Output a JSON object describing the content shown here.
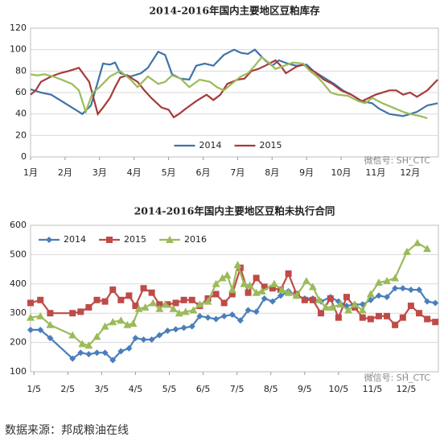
{
  "chart_data": [
    {
      "type": "line",
      "title": "2014-2016年国内主要地区豆粕库存",
      "xlim": [
        1,
        12.82
      ],
      "ylim": [
        0,
        120
      ],
      "xticks": [
        {
          "value": 1,
          "label": "1月"
        },
        {
          "value": 2,
          "label": "2月"
        },
        {
          "value": 3,
          "label": "3月"
        },
        {
          "value": 4,
          "label": "4月"
        },
        {
          "value": 5,
          "label": "5月"
        },
        {
          "value": 6,
          "label": "6月"
        },
        {
          "value": 7,
          "label": "7月"
        },
        {
          "value": 8,
          "label": "8月"
        },
        {
          "value": 9,
          "label": "9月"
        },
        {
          "value": 10,
          "label": "10月"
        },
        {
          "value": 11,
          "label": "11月"
        },
        {
          "value": 12,
          "label": "12月"
        }
      ],
      "yticks": [
        0,
        20,
        40,
        60,
        80,
        100,
        120
      ],
      "grid": true,
      "legend": "bottom",
      "annotations": [
        "微信号: SH_CTC"
      ],
      "series": [
        {
          "name": "2014",
          "color": "#3f73a8",
          "x": [
            1,
            1.3,
            1.6,
            2.0,
            2.3,
            2.5,
            2.75,
            2.95,
            3.1,
            3.3,
            3.45,
            3.6,
            3.9,
            4.2,
            4.4,
            4.7,
            4.9,
            5.1,
            5.35,
            5.6,
            5.8,
            6.05,
            6.3,
            6.6,
            6.9,
            7.1,
            7.3,
            7.5,
            7.8,
            8.0,
            8.2,
            8.45,
            8.7,
            9.0,
            9.2,
            9.4,
            9.6,
            9.8,
            10.05,
            10.3,
            10.6,
            10.9,
            11.1,
            11.4,
            11.8,
            12.0,
            12.2,
            12.5,
            12.8
          ],
          "values": [
            63,
            60,
            58,
            50,
            44,
            40,
            48,
            70,
            87,
            86,
            88,
            78,
            75,
            78,
            83,
            98,
            95,
            77,
            73,
            72,
            85,
            87,
            85,
            95,
            100,
            97,
            96,
            100,
            90,
            85,
            90,
            87,
            85,
            86,
            80,
            76,
            72,
            68,
            62,
            58,
            52,
            50,
            45,
            40,
            38,
            40,
            42,
            48,
            50
          ]
        },
        {
          "name": "2015",
          "color": "#a83a3a",
          "x": [
            1,
            1.15,
            1.3,
            1.6,
            1.85,
            2.1,
            2.4,
            2.7,
            2.95,
            3.1,
            3.3,
            3.45,
            3.6,
            3.8,
            4.1,
            4.3,
            4.5,
            4.8,
            5.0,
            5.15,
            5.3,
            5.5,
            5.8,
            6.1,
            6.3,
            6.5,
            6.7,
            7.0,
            7.2,
            7.4,
            7.6,
            7.8,
            8.1,
            8.25,
            8.4,
            8.7,
            8.9,
            9.2,
            9.5,
            9.75,
            10.0,
            10.3,
            10.6,
            10.8,
            11.0,
            11.4,
            11.6,
            11.8,
            12.0,
            12.2,
            12.5,
            12.8
          ],
          "values": [
            58,
            62,
            70,
            75,
            78,
            80,
            83,
            70,
            40,
            46,
            55,
            65,
            74,
            76,
            70,
            62,
            55,
            46,
            44,
            37,
            40,
            45,
            52,
            58,
            53,
            58,
            68,
            72,
            73,
            80,
            82,
            85,
            90,
            85,
            78,
            84,
            86,
            80,
            72,
            68,
            62,
            58,
            52,
            55,
            58,
            62,
            62,
            58,
            60,
            56,
            62,
            72
          ]
        },
        {
          "color": "#9bbb59",
          "x": [
            1,
            1.2,
            1.4,
            1.65,
            1.9,
            2.2,
            2.4,
            2.6,
            2.8,
            3.0,
            3.3,
            3.6,
            3.9,
            4.1,
            4.25,
            4.4,
            4.7,
            4.9,
            5.1,
            5.35,
            5.6,
            5.9,
            6.2,
            6.4,
            6.6,
            6.9,
            7.1,
            7.3,
            7.5,
            7.7,
            7.9,
            8.1,
            8.35,
            8.6,
            8.9,
            9.1,
            9.3,
            9.5,
            9.7,
            9.9,
            10.2,
            10.5,
            10.7,
            10.9,
            11.2,
            11.5,
            11.8,
            12.0,
            12.3,
            12.5
          ],
          "values": [
            77,
            76,
            77,
            75,
            72,
            68,
            62,
            42,
            60,
            65,
            75,
            80,
            72,
            65,
            70,
            75,
            68,
            70,
            76,
            73,
            65,
            72,
            70,
            65,
            62,
            70,
            75,
            78,
            85,
            93,
            88,
            82,
            85,
            88,
            87,
            80,
            75,
            68,
            60,
            58,
            57,
            52,
            50,
            55,
            50,
            46,
            42,
            40,
            38,
            36
          ]
        }
      ]
    },
    {
      "type": "line",
      "title": "2014-2016年国内主要地区豆粕未执行合同",
      "xlim": [
        0.9,
        12.95
      ],
      "ylim": [
        100,
        600
      ],
      "xticks": [
        {
          "value": 1,
          "label": "1/5"
        },
        {
          "value": 2,
          "label": "2/5"
        },
        {
          "value": 3,
          "label": "3/5"
        },
        {
          "value": 4,
          "label": "4/5"
        },
        {
          "value": 5,
          "label": "5/5"
        },
        {
          "value": 6,
          "label": "6/5"
        },
        {
          "value": 7,
          "label": "7/5"
        },
        {
          "value": 8,
          "label": "8/5"
        },
        {
          "value": 9,
          "label": "9/5"
        },
        {
          "value": 10,
          "label": "10/5"
        },
        {
          "value": 11,
          "label": "11/5"
        },
        {
          "value": 12,
          "label": "12/5"
        }
      ],
      "yticks": [
        100,
        200,
        300,
        400,
        500,
        600
      ],
      "grid": true,
      "legend": "top-left",
      "annotations": [
        "微信号: SH_CTC"
      ],
      "series": [
        {
          "name": "2014",
          "color": "#4a7ebb",
          "marker": "diamond",
          "x": [
            0.9,
            1.19,
            1.48,
            2.14,
            2.38,
            2.62,
            2.86,
            3.1,
            3.33,
            3.57,
            3.81,
            4.0,
            4.24,
            4.48,
            4.71,
            4.95,
            5.19,
            5.43,
            5.67,
            5.9,
            6.14,
            6.38,
            6.62,
            6.86,
            7.1,
            7.33,
            7.57,
            7.81,
            8.05,
            8.29,
            8.52,
            8.76,
            9.0,
            9.24,
            9.48,
            9.76,
            10.0,
            10.24,
            10.48,
            10.71,
            10.95,
            11.19,
            11.43,
            11.67,
            11.9,
            12.14,
            12.38,
            12.62,
            12.86
          ],
          "values": [
            243,
            243,
            215,
            145,
            165,
            160,
            165,
            165,
            140,
            170,
            180,
            215,
            210,
            210,
            225,
            240,
            245,
            250,
            255,
            290,
            285,
            280,
            290,
            295,
            275,
            310,
            305,
            350,
            340,
            360,
            375,
            360,
            350,
            350,
            340,
            355,
            340,
            325,
            330,
            330,
            345,
            360,
            355,
            385,
            385,
            380,
            380,
            340,
            335
          ]
        },
        {
          "name": "2015",
          "color": "#be4b48",
          "marker": "square",
          "x": [
            0.9,
            1.19,
            1.48,
            2.14,
            2.38,
            2.62,
            2.86,
            3.1,
            3.33,
            3.57,
            3.81,
            4.0,
            4.24,
            4.48,
            4.71,
            4.95,
            5.19,
            5.43,
            5.67,
            5.9,
            6.14,
            6.38,
            6.62,
            6.86,
            7.1,
            7.33,
            7.57,
            7.81,
            8.05,
            8.29,
            8.52,
            8.76,
            9.0,
            9.24,
            9.48,
            9.76,
            10.0,
            10.24,
            10.48,
            10.71,
            10.95,
            11.19,
            11.43,
            11.67,
            11.9,
            12.14,
            12.38,
            12.62,
            12.86
          ],
          "values": [
            335,
            345,
            300,
            300,
            305,
            320,
            345,
            340,
            380,
            345,
            360,
            325,
            385,
            370,
            330,
            330,
            335,
            345,
            345,
            325,
            350,
            365,
            335,
            365,
            455,
            370,
            420,
            390,
            385,
            380,
            435,
            365,
            345,
            345,
            300,
            350,
            285,
            355,
            320,
            285,
            280,
            290,
            290,
            260,
            285,
            325,
            300,
            280,
            270
          ]
        },
        {
          "name": "2016",
          "color": "#9bbb59",
          "marker": "triangle",
          "x": [
            0.9,
            1.19,
            1.48,
            2.14,
            2.43,
            2.62,
            2.86,
            3.1,
            3.33,
            3.57,
            3.76,
            3.93,
            4.1,
            4.29,
            4.52,
            4.71,
            4.88,
            5.12,
            5.29,
            5.48,
            5.71,
            5.9,
            6.14,
            6.38,
            6.57,
            6.71,
            6.86,
            7.02,
            7.21,
            7.38,
            7.57,
            7.74,
            8.1,
            8.33,
            8.52,
            8.76,
            9.05,
            9.24,
            9.43,
            9.62,
            9.81,
            10.05,
            10.29,
            10.48,
            10.71,
            10.95,
            11.19,
            11.43,
            11.67,
            12.02,
            12.33,
            12.62
          ],
          "values": [
            285,
            290,
            260,
            225,
            195,
            190,
            220,
            255,
            270,
            275,
            260,
            265,
            315,
            320,
            335,
            315,
            330,
            315,
            300,
            305,
            310,
            330,
            340,
            400,
            420,
            430,
            380,
            465,
            400,
            395,
            370,
            375,
            400,
            380,
            370,
            360,
            410,
            390,
            345,
            320,
            320,
            330,
            310,
            330,
            310,
            365,
            405,
            410,
            420,
            510,
            540,
            520
          ]
        }
      ]
    }
  ],
  "source": "数据来源：邦成粮油在线"
}
